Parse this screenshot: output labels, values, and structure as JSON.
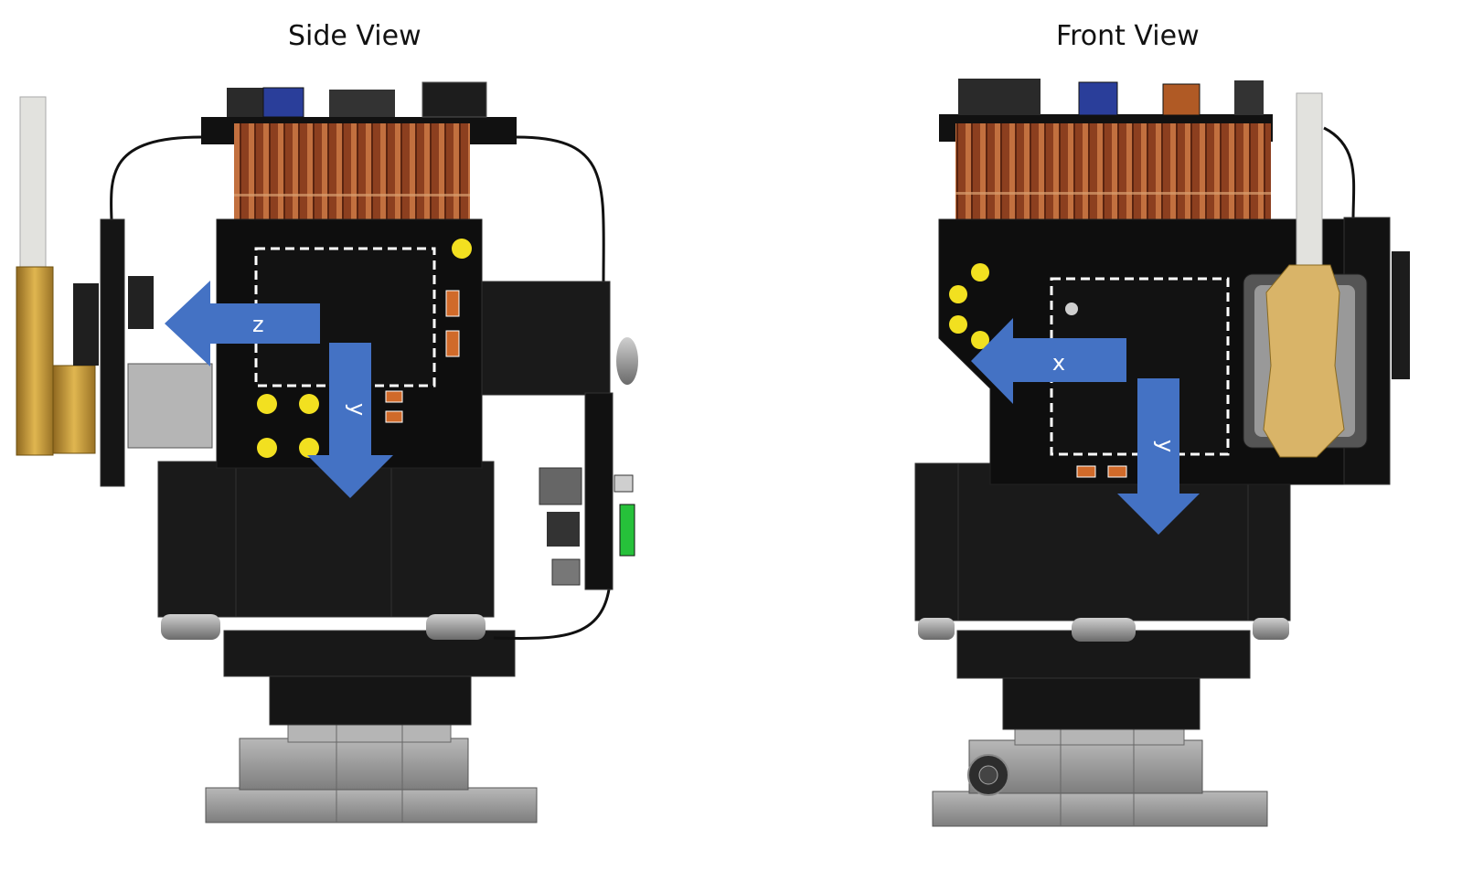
{
  "views": {
    "side": {
      "title": "Side View",
      "axes": {
        "horizontal": "z",
        "vertical": "y"
      }
    },
    "front": {
      "title": "Front View",
      "axes": {
        "horizontal": "x",
        "vertical": "y"
      }
    }
  },
  "colors": {
    "arrow": "#4472c4",
    "body": "#141414",
    "pcb": "#111111",
    "pad": "#f2e020",
    "coil": "#a4552b",
    "metal": "#9a9a9a",
    "brass": "#c99a3a"
  }
}
